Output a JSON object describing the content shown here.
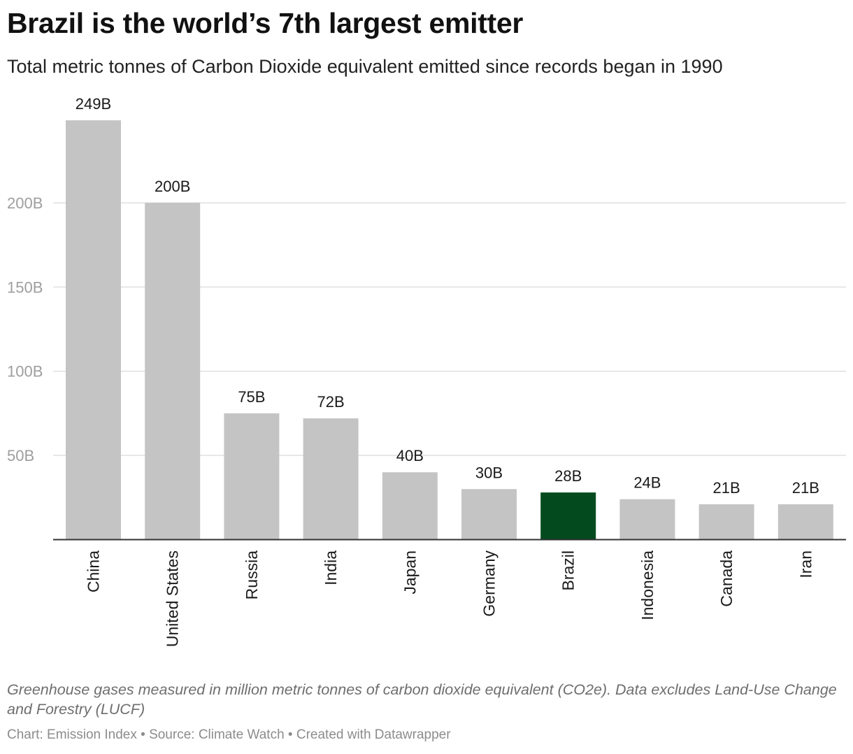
{
  "header": {
    "title": "Brazil is the world’s 7th largest emitter",
    "subtitle": "Total metric tonnes of Carbon Dioxide equivalent emitted since records began in 1990"
  },
  "footer": {
    "notes": "Greenhouse gases measured in million metric tonnes of carbon dioxide equivalent (CO2e). Data excludes Land-Use Change and Forestry (LUCF)",
    "byline": "Chart: Emission Index • Source: Climate Watch • Created with Datawrapper"
  },
  "colors": {
    "default_bar": "#c4c4c4",
    "highlight_bar": "#034a1f",
    "grid": "#e0e0e0",
    "baseline": "#333333",
    "tick_label": "#9e9e9e"
  },
  "chart_data": {
    "type": "bar",
    "title": "Brazil is the world’s 7th largest emitter",
    "subtitle": "Total metric tonnes of Carbon Dioxide equivalent emitted since records began in 1990",
    "categories": [
      "China",
      "United States",
      "Russia",
      "India",
      "Japan",
      "Germany",
      "Brazil",
      "Indonesia",
      "Canada",
      "Iran"
    ],
    "values": [
      249,
      200,
      75,
      72,
      40,
      30,
      28,
      24,
      21,
      21
    ],
    "value_labels": [
      "249B",
      "200B",
      "75B",
      "72B",
      "40B",
      "30B",
      "28B",
      "24B",
      "21B",
      "21B"
    ],
    "unit": "B",
    "highlight": "Brazil",
    "yticks": [
      50,
      100,
      150,
      200
    ],
    "ytick_labels": [
      "50B",
      "100B",
      "150B",
      "200B"
    ],
    "ylim": [
      0,
      249
    ],
    "grid": true,
    "legend": "none",
    "category_label_orientation": "vertical"
  }
}
